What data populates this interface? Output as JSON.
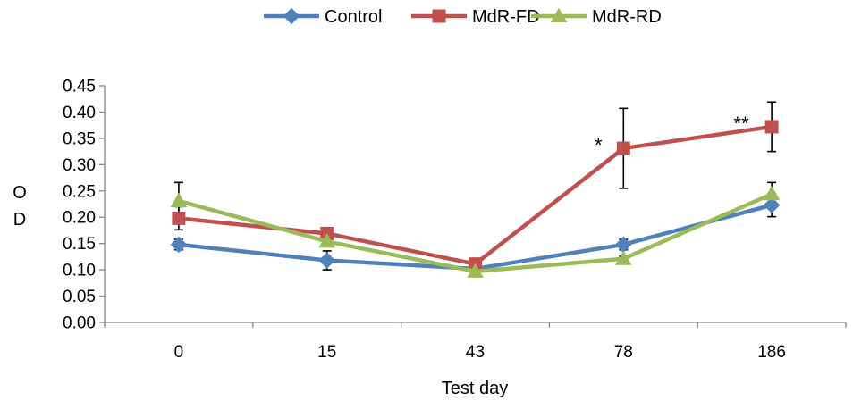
{
  "chart_data": {
    "type": "line",
    "xlabel": "Test day",
    "ylabel": "OD",
    "categories": [
      "0",
      "15",
      "43",
      "78",
      "186"
    ],
    "ylim": [
      0,
      0.45
    ],
    "yticks": [
      "0.00",
      "0.05",
      "0.10",
      "0.15",
      "0.20",
      "0.25",
      "0.30",
      "0.35",
      "0.40",
      "0.45"
    ],
    "grid": false,
    "legend_position": "top",
    "series": [
      {
        "name": "Control",
        "color": "#4F81BD",
        "marker": "diamond",
        "values": [
          0.148,
          0.118,
          0.102,
          0.148,
          0.223
        ],
        "errors": [
          0.01,
          0.018,
          0.005,
          0.01,
          0.022
        ]
      },
      {
        "name": "MdR-FD",
        "color": "#C0504D",
        "marker": "square",
        "values": [
          0.198,
          0.169,
          0.111,
          0.331,
          0.372
        ],
        "errors": [
          0.022,
          0.006,
          0.004,
          0.076,
          0.047
        ]
      },
      {
        "name": "MdR-RD",
        "color": "#9BBB59",
        "marker": "triangle",
        "values": [
          0.231,
          0.154,
          0.097,
          0.121,
          0.244
        ],
        "errors": [
          0.035,
          0.005,
          0.004,
          0.005,
          0.022
        ]
      }
    ],
    "annotations": [
      {
        "text": "*",
        "category": "78"
      },
      {
        "text": "**",
        "category": "186"
      }
    ]
  }
}
